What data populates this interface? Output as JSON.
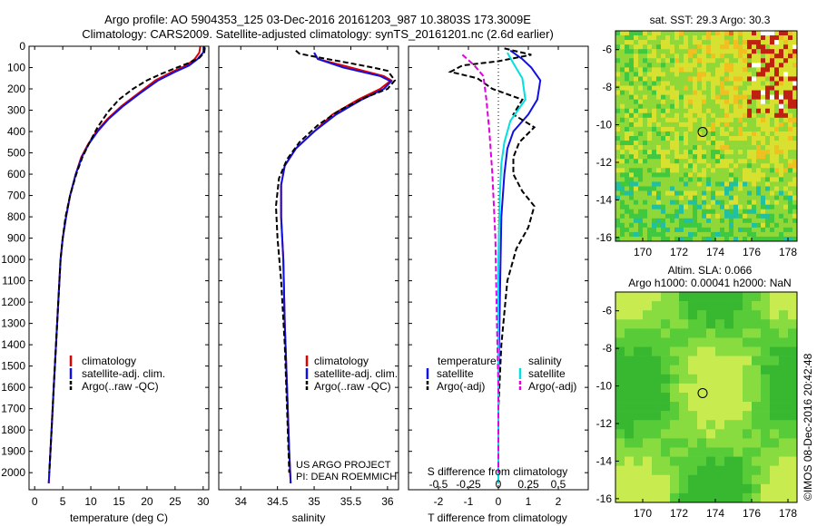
{
  "title_line1": "Argo profile: AO 5904353_125 03-Dec-2016 20161203_987 10.3803S 173.3009E",
  "title_line2": "Climatology: CARS2009. Satellite-adjusted climatology: synTS_20161201.nc (2.6d earlier)",
  "sst_title": "sat. SST: 29.3 Argo: 30.3",
  "sla_title1": "Altim. SLA: 0.066",
  "sla_title2": "Argo h1000: 0.00041 h2000: NaN",
  "imos_credit": "©IMOS 08-Dec-2016 20:42:48",
  "project_line1": "US ARGO PROJECT",
  "project_line2": "PI: DEAN ROEMMICH",
  "colors": {
    "climatology": "#e00000",
    "satellite": "#1010e0",
    "argo": "#000000",
    "sal_satellite": "#00e0e0",
    "sal_argo": "#e000e0"
  },
  "chart_data": [
    {
      "type": "line",
      "xlabel": "temperature (deg C)",
      "xlim": [
        -1,
        31
      ],
      "ylim": [
        2080,
        0
      ],
      "xticks": [
        0,
        5,
        10,
        15,
        20,
        25,
        30
      ],
      "yticks": [
        0,
        100,
        200,
        300,
        400,
        500,
        600,
        700,
        800,
        900,
        1000,
        1100,
        1200,
        1300,
        1400,
        1500,
        1600,
        1700,
        1800,
        1900,
        2000
      ],
      "legend": [
        "climatology",
        "satellite-adj. clim.",
        "Argo(..raw -QC)"
      ],
      "series": [
        {
          "name": "climatology",
          "color": "#e00000",
          "dash": "",
          "points": [
            [
              29.5,
              0
            ],
            [
              29.3,
              30
            ],
            [
              28.5,
              60
            ],
            [
              27,
              90
            ],
            [
              24.5,
              120
            ],
            [
              21.5,
              160
            ],
            [
              18.5,
              220
            ],
            [
              15.5,
              280
            ],
            [
              13,
              340
            ],
            [
              11,
              400
            ],
            [
              9.5,
              460
            ],
            [
              8.3,
              520
            ],
            [
              7.3,
              600
            ],
            [
              6.3,
              700
            ],
            [
              5.6,
              800
            ],
            [
              5,
              900
            ],
            [
              4.6,
              1000
            ],
            [
              4.2,
              1200
            ],
            [
              3.8,
              1400
            ],
            [
              3.4,
              1600
            ],
            [
              3,
              1800
            ],
            [
              2.6,
              2000
            ],
            [
              2.5,
              2050
            ]
          ]
        },
        {
          "name": "satellite-adj. clim.",
          "color": "#1010e0",
          "dash": "",
          "points": [
            [
              30.2,
              0
            ],
            [
              30,
              30
            ],
            [
              29,
              60
            ],
            [
              27.5,
              90
            ],
            [
              25,
              120
            ],
            [
              22,
              160
            ],
            [
              18.8,
              220
            ],
            [
              15.8,
              280
            ],
            [
              13.2,
              340
            ],
            [
              11.2,
              400
            ],
            [
              9.6,
              460
            ],
            [
              8.4,
              520
            ],
            [
              7.3,
              600
            ],
            [
              6.3,
              700
            ],
            [
              5.6,
              800
            ],
            [
              5,
              900
            ],
            [
              4.6,
              1000
            ],
            [
              4.2,
              1200
            ],
            [
              3.8,
              1400
            ],
            [
              3.4,
              1600
            ],
            [
              3,
              1800
            ],
            [
              2.6,
              2000
            ],
            [
              2.5,
              2050
            ]
          ]
        },
        {
          "name": "Argo(..raw -QC)",
          "color": "#000000",
          "dash": "6,3",
          "points": [
            [
              30.3,
              5
            ],
            [
              30.2,
              30
            ],
            [
              29.3,
              55
            ],
            [
              27.3,
              80
            ],
            [
              24.8,
              105
            ],
            [
              22.5,
              130
            ],
            [
              20,
              160
            ],
            [
              17.5,
              200
            ],
            [
              15,
              250
            ],
            [
              13,
              310
            ],
            [
              11.2,
              380
            ],
            [
              9.8,
              450
            ],
            [
              8.5,
              520
            ],
            [
              7.4,
              600
            ],
            [
              6.3,
              700
            ],
            [
              5.5,
              800
            ],
            [
              5,
              900
            ],
            [
              4.6,
              1000
            ],
            [
              4.2,
              1200
            ],
            [
              3.8,
              1400
            ],
            [
              3.4,
              1600
            ],
            [
              3,
              1800
            ],
            [
              2.6,
              2000
            ]
          ]
        }
      ]
    },
    {
      "type": "line",
      "xlabel": "salinity",
      "xlim": [
        33.7,
        36.15
      ],
      "ylim": [
        2080,
        0
      ],
      "xticks": [
        34,
        34.5,
        35,
        35.5,
        36
      ],
      "legend": [
        "climatology",
        "satellite-adj. clim.",
        "Argo(..raw -QC)"
      ],
      "series": [
        {
          "name": "climatology",
          "color": "#e00000",
          "dash": "",
          "points": [
            [
              35,
              30
            ],
            [
              35.05,
              60
            ],
            [
              35.5,
              100
            ],
            [
              35.95,
              140
            ],
            [
              36.05,
              160
            ],
            [
              35.9,
              200
            ],
            [
              35.6,
              250
            ],
            [
              35.25,
              320
            ],
            [
              35,
              400
            ],
            [
              34.75,
              480
            ],
            [
              34.6,
              560
            ],
            [
              34.55,
              650
            ],
            [
              34.55,
              800
            ],
            [
              34.58,
              1000
            ],
            [
              34.6,
              1300
            ],
            [
              34.63,
              1600
            ],
            [
              34.66,
              1900
            ],
            [
              34.68,
              2050
            ]
          ]
        },
        {
          "name": "satellite-adj. clim.",
          "color": "#1010e0",
          "dash": "",
          "points": [
            [
              35,
              30
            ],
            [
              35.05,
              60
            ],
            [
              35.4,
              100
            ],
            [
              35.9,
              140
            ],
            [
              36.05,
              165
            ],
            [
              35.95,
              200
            ],
            [
              35.65,
              250
            ],
            [
              35.3,
              320
            ],
            [
              35,
              400
            ],
            [
              34.75,
              480
            ],
            [
              34.6,
              560
            ],
            [
              34.55,
              650
            ],
            [
              34.55,
              800
            ],
            [
              34.58,
              1000
            ],
            [
              34.6,
              1300
            ],
            [
              34.63,
              1600
            ],
            [
              34.66,
              1900
            ],
            [
              34.68,
              2050
            ]
          ]
        },
        {
          "name": "Argo(..raw -QC)",
          "color": "#000000",
          "dash": "6,3",
          "points": [
            [
              34.75,
              20
            ],
            [
              34.8,
              35
            ],
            [
              35.1,
              55
            ],
            [
              35.5,
              80
            ],
            [
              35.8,
              100
            ],
            [
              36,
              115
            ],
            [
              36.1,
              160
            ],
            [
              36,
              200
            ],
            [
              35.7,
              240
            ],
            [
              35.35,
              300
            ],
            [
              35.05,
              370
            ],
            [
              34.8,
              450
            ],
            [
              34.63,
              530
            ],
            [
              34.52,
              620
            ],
            [
              34.48,
              750
            ],
            [
              34.5,
              900
            ],
            [
              34.55,
              1100
            ],
            [
              34.6,
              1400
            ],
            [
              34.63,
              1700
            ],
            [
              34.66,
              2000
            ]
          ]
        }
      ]
    },
    {
      "type": "line",
      "xlabel": "T difference from climatology",
      "xlabel_top": "S difference from climatology",
      "xlim": [
        -3,
        3
      ],
      "ylim": [
        2080,
        0
      ],
      "xticks": [
        -2,
        -1,
        0,
        1,
        2
      ],
      "s_xtick_labels": [
        "-0.5",
        "-0.25",
        "0",
        "0.25",
        "0.5"
      ],
      "legend_temperature": [
        "temperature",
        "satellite",
        "Argo(-adj)"
      ],
      "legend_salinity": [
        "salinity",
        "satellite",
        "Argo(-adj)"
      ],
      "series": [
        {
          "name": "temperature satellite",
          "color": "#1010e0",
          "dash": "",
          "points": [
            [
              0.4,
              20
            ],
            [
              0.8,
              60
            ],
            [
              1.1,
              100
            ],
            [
              1.4,
              160
            ],
            [
              1.3,
              250
            ],
            [
              1.0,
              320
            ],
            [
              0.5,
              400
            ],
            [
              0.3,
              480
            ],
            [
              0.2,
              600
            ],
            [
              0.1,
              800
            ],
            [
              0.05,
              1200
            ],
            [
              0,
              1600
            ],
            [
              0,
              2050
            ]
          ]
        },
        {
          "name": "temperature Argo(-adj)",
          "color": "#000000",
          "dash": "6,3",
          "points": [
            [
              0.2,
              10
            ],
            [
              1.1,
              40
            ],
            [
              0,
              70
            ],
            [
              -1.2,
              90
            ],
            [
              -1.6,
              120
            ],
            [
              -0.7,
              150
            ],
            [
              -0.2,
              200
            ],
            [
              0.8,
              250
            ],
            [
              0.5,
              320
            ],
            [
              1.2,
              380
            ],
            [
              0.7,
              450
            ],
            [
              0.5,
              520
            ],
            [
              0.5,
              600
            ],
            [
              0.8,
              680
            ],
            [
              1.2,
              750
            ],
            [
              1.0,
              850
            ],
            [
              0.6,
              950
            ],
            [
              0.3,
              1100
            ],
            [
              0.1,
              1400
            ],
            [
              0,
              1700
            ],
            [
              0,
              2000
            ]
          ]
        },
        {
          "name": "salinity satellite",
          "color": "#00e0e0",
          "dash": "",
          "points": [
            [
              0.3,
              30
            ],
            [
              0.5,
              80
            ],
            [
              0.8,
              150
            ],
            [
              0.9,
              250
            ],
            [
              0.4,
              350
            ],
            [
              0.2,
              450
            ],
            [
              0.1,
              550
            ],
            [
              0.05,
              700
            ],
            [
              0,
              1000
            ],
            [
              0,
              2050
            ]
          ]
        },
        {
          "name": "salinity Argo(-adj)",
          "color": "#e000e0",
          "dash": "6,3",
          "points": [
            [
              -1.2,
              40
            ],
            [
              -0.8,
              90
            ],
            [
              -0.5,
              140
            ],
            [
              -0.4,
              250
            ],
            [
              -0.3,
              400
            ],
            [
              -0.2,
              600
            ],
            [
              -0.1,
              900
            ],
            [
              -0.05,
              1300
            ],
            [
              0,
              1600
            ],
            [
              0,
              2000
            ]
          ]
        }
      ]
    },
    {
      "type": "heatmap",
      "xlim": [
        168.5,
        178.5
      ],
      "ylim": [
        -16.2,
        -5
      ],
      "xticks": [
        170,
        172,
        174,
        176,
        178
      ],
      "yticks": [
        -6,
        -8,
        -10,
        -12,
        -14,
        -16
      ],
      "profile_location": [
        173.3,
        -10.38
      ]
    },
    {
      "type": "heatmap",
      "xlim": [
        168.5,
        178.5
      ],
      "ylim": [
        -16.2,
        -5
      ],
      "xticks": [
        170,
        172,
        174,
        176,
        178
      ],
      "yticks": [
        -6,
        -8,
        -10,
        -12,
        -14,
        -16
      ],
      "profile_location": [
        173.3,
        -10.38
      ]
    }
  ]
}
